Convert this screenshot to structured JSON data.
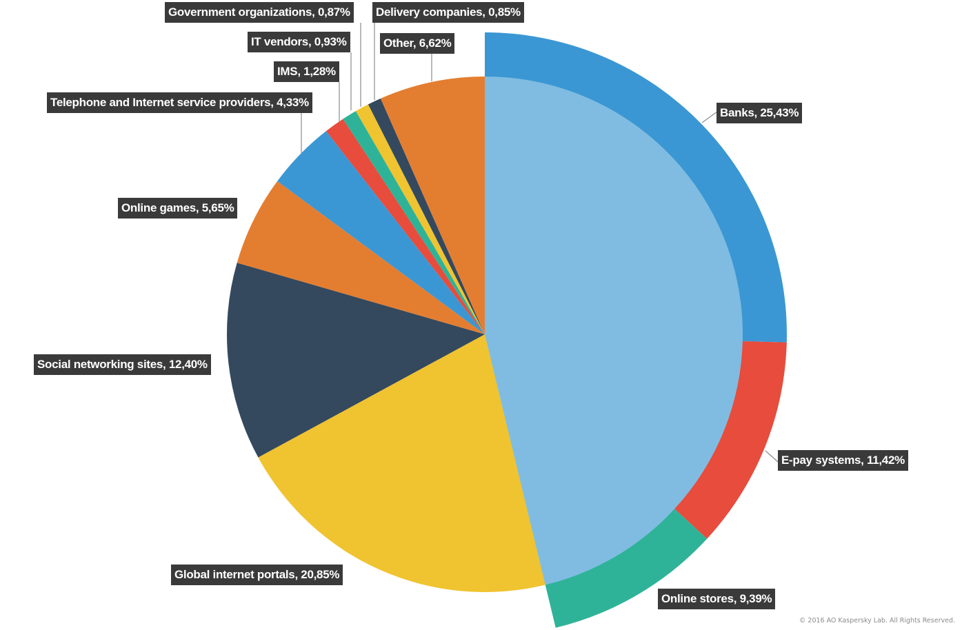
{
  "chart_data": {
    "type": "pie",
    "title": "",
    "slices": [
      {
        "name": "Banks",
        "label": "Banks, 25,43%",
        "value": 25.43,
        "color": "#3b97d3",
        "group": "financial"
      },
      {
        "name": "E-pay systems",
        "label": "E-pay systems, 11,42%",
        "value": 11.42,
        "color": "#e74c3c",
        "group": "financial"
      },
      {
        "name": "Online stores",
        "label": "Online stores, 9,39%",
        "value": 9.39,
        "color": "#2eb398",
        "group": "financial"
      },
      {
        "name": "Global internet portals",
        "label": "Global internet portals, 20,85%",
        "value": 20.85,
        "color": "#f0c330",
        "group": "other"
      },
      {
        "name": "Social networking sites",
        "label": "Social networking sites, 12,40%",
        "value": 12.4,
        "color": "#34495e",
        "group": "other"
      },
      {
        "name": "Online games",
        "label": "Online games, 5,65%",
        "value": 5.65,
        "color": "#e37e31",
        "group": "other"
      },
      {
        "name": "Telephone and Internet service providers",
        "label": "Telephone and Internet service providers, 4,33%",
        "value": 4.33,
        "color": "#3b97d3",
        "group": "other"
      },
      {
        "name": "IMS",
        "label": "IMS, 1,28%",
        "value": 1.28,
        "color": "#e74c3c",
        "group": "other"
      },
      {
        "name": "IT vendors",
        "label": "IT vendors, 0,93%",
        "value": 0.93,
        "color": "#2eb398",
        "group": "other"
      },
      {
        "name": "Government organizations",
        "label": "Government organizations, 0,87%",
        "value": 0.87,
        "color": "#f0c330",
        "group": "other"
      },
      {
        "name": "Delivery companies",
        "label": "Delivery companies, 0,85%",
        "value": 0.85,
        "color": "#34495e",
        "group": "other"
      },
      {
        "name": "Other",
        "label": "Other, 6,62%",
        "value": 6.62,
        "color": "#e37e31",
        "group": "other"
      }
    ],
    "financial_group_total": 46.24,
    "financial_group_color": "#80bce1",
    "legend": "none"
  },
  "copyright": "© 2016 AO Kaspersky Lab. All Rights Reserved."
}
